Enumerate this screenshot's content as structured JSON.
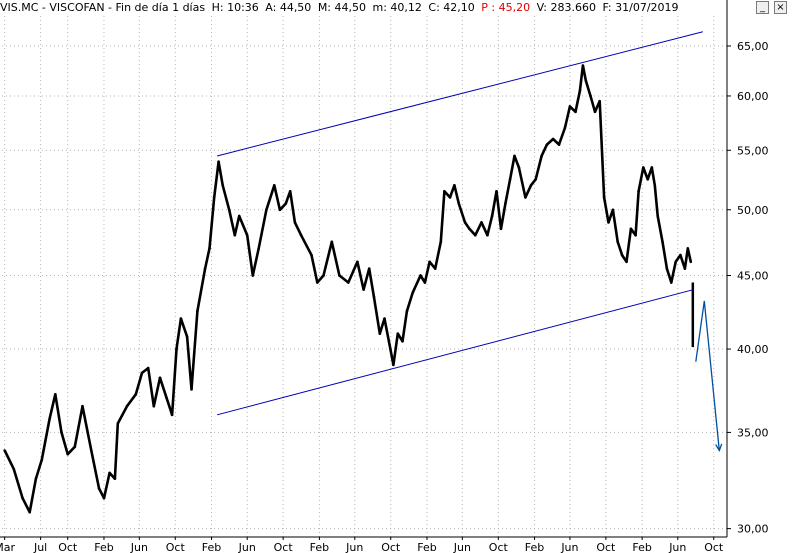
{
  "header": {
    "symbol": "VIS.MC - VISCOFAN - Fin de día 1 días",
    "h": "H: 10:36",
    "a": "A: 44,50",
    "m": "M: 44,50",
    "min": "m: 40,12",
    "c": "C: 42,10",
    "p": "P : 45,20",
    "v": "V: 283.660",
    "f": "F: 31/07/2019",
    "highlight_color": "#e00000"
  },
  "window_controls": {
    "minimize_icon": "minimize-icon",
    "minimize_glyph": "_",
    "close_icon": "close-icon",
    "close_glyph": "×"
  },
  "chart_data": {
    "type": "line",
    "title": "VIS.MC - VISCOFAN",
    "y_axis_position": "right",
    "y_scale": "log",
    "ylim": [
      29.6,
      68.2
    ],
    "y_ticks": [
      30,
      35,
      40,
      45,
      50,
      55,
      60,
      65
    ],
    "y_tick_labels": [
      "30,00",
      "35,00",
      "40,00",
      "45,00",
      "50,00",
      "55,00",
      "60,00",
      "65,00"
    ],
    "x_range": [
      "2014-02-20",
      "2020-11-15"
    ],
    "x_ticks": [
      "2014-03-01",
      "2014-07-01",
      "2014-10-01",
      "2015-02-01",
      "2015-06-01",
      "2015-10-01",
      "2016-02-01",
      "2016-06-01",
      "2016-10-01",
      "2017-02-01",
      "2017-06-01",
      "2017-10-01",
      "2018-02-01",
      "2018-06-01",
      "2018-10-01",
      "2019-02-01",
      "2019-06-01",
      "2019-10-01",
      "2020-02-01",
      "2020-06-01",
      "2020-10-01"
    ],
    "x_tick_labels": [
      "Mar",
      "Jul",
      "Oct",
      "Feb",
      "Jun",
      "Oct",
      "Feb",
      "Jun",
      "Oct",
      "Feb",
      "Jun",
      "Oct",
      "Feb",
      "Jun",
      "Oct",
      "Feb",
      "Jun",
      "Oct",
      "Feb",
      "Jun",
      "Oct"
    ],
    "series": [
      {
        "color": "#000000",
        "points": [
          [
            "2014-03-01",
            34.0
          ],
          [
            "2014-04-01",
            33.0
          ],
          [
            "2014-05-01",
            31.5
          ],
          [
            "2014-05-25",
            30.8
          ],
          [
            "2014-06-15",
            32.5
          ],
          [
            "2014-07-05",
            33.5
          ],
          [
            "2014-08-01",
            35.8
          ],
          [
            "2014-08-20",
            37.2
          ],
          [
            "2014-09-10",
            35.0
          ],
          [
            "2014-10-01",
            33.8
          ],
          [
            "2014-10-25",
            34.2
          ],
          [
            "2014-11-20",
            36.5
          ],
          [
            "2014-12-20",
            34.0
          ],
          [
            "2015-01-15",
            32.0
          ],
          [
            "2015-02-01",
            31.5
          ],
          [
            "2015-02-20",
            32.8
          ],
          [
            "2015-03-10",
            32.5
          ],
          [
            "2015-03-20",
            35.5
          ],
          [
            "2015-04-20",
            36.5
          ],
          [
            "2015-05-20",
            37.2
          ],
          [
            "2015-06-10",
            38.5
          ],
          [
            "2015-07-01",
            38.8
          ],
          [
            "2015-07-20",
            36.5
          ],
          [
            "2015-08-10",
            38.2
          ],
          [
            "2015-09-01",
            37.0
          ],
          [
            "2015-09-20",
            36.0
          ],
          [
            "2015-10-05",
            40.0
          ],
          [
            "2015-10-20",
            42.0
          ],
          [
            "2015-11-10",
            40.8
          ],
          [
            "2015-11-25",
            37.5
          ],
          [
            "2015-12-15",
            42.5
          ],
          [
            "2016-01-10",
            45.5
          ],
          [
            "2016-01-25",
            47.0
          ],
          [
            "2016-02-10",
            51.0
          ],
          [
            "2016-02-25",
            54.0
          ],
          [
            "2016-03-10",
            52.0
          ],
          [
            "2016-04-01",
            50.0
          ],
          [
            "2016-04-20",
            48.0
          ],
          [
            "2016-05-05",
            49.5
          ],
          [
            "2016-06-01",
            48.0
          ],
          [
            "2016-06-20",
            45.0
          ],
          [
            "2016-07-10",
            47.0
          ],
          [
            "2016-08-05",
            50.0
          ],
          [
            "2016-09-01",
            52.0
          ],
          [
            "2016-09-20",
            50.0
          ],
          [
            "2016-10-10",
            50.5
          ],
          [
            "2016-10-25",
            51.5
          ],
          [
            "2016-11-10",
            49.0
          ],
          [
            "2016-12-01",
            48.0
          ],
          [
            "2017-01-05",
            46.5
          ],
          [
            "2017-01-25",
            44.5
          ],
          [
            "2017-02-15",
            45.0
          ],
          [
            "2017-03-15",
            47.5
          ],
          [
            "2017-04-10",
            45.0
          ],
          [
            "2017-05-10",
            44.5
          ],
          [
            "2017-06-10",
            46.0
          ],
          [
            "2017-07-01",
            44.0
          ],
          [
            "2017-07-20",
            45.5
          ],
          [
            "2017-08-05",
            43.5
          ],
          [
            "2017-08-25",
            41.0
          ],
          [
            "2017-09-10",
            42.0
          ],
          [
            "2017-09-30",
            40.0
          ],
          [
            "2017-10-10",
            39.0
          ],
          [
            "2017-10-25",
            41.0
          ],
          [
            "2017-11-10",
            40.5
          ],
          [
            "2017-11-25",
            42.5
          ],
          [
            "2017-12-15",
            43.8
          ],
          [
            "2018-01-10",
            45.0
          ],
          [
            "2018-01-25",
            44.5
          ],
          [
            "2018-02-10",
            46.0
          ],
          [
            "2018-03-01",
            45.5
          ],
          [
            "2018-03-20",
            47.5
          ],
          [
            "2018-04-01",
            51.5
          ],
          [
            "2018-04-20",
            51.0
          ],
          [
            "2018-05-05",
            52.0
          ],
          [
            "2018-05-20",
            50.5
          ],
          [
            "2018-06-10",
            49.0
          ],
          [
            "2018-06-25",
            48.5
          ],
          [
            "2018-07-15",
            48.0
          ],
          [
            "2018-08-05",
            49.0
          ],
          [
            "2018-08-25",
            48.0
          ],
          [
            "2018-09-10",
            49.5
          ],
          [
            "2018-09-25",
            51.5
          ],
          [
            "2018-10-10",
            48.5
          ],
          [
            "2018-10-25",
            50.5
          ],
          [
            "2018-11-10",
            52.5
          ],
          [
            "2018-11-25",
            54.5
          ],
          [
            "2018-12-10",
            53.5
          ],
          [
            "2019-01-01",
            51.0
          ],
          [
            "2019-01-20",
            52.0
          ],
          [
            "2019-02-05",
            52.5
          ],
          [
            "2019-02-25",
            54.5
          ],
          [
            "2019-03-15",
            55.5
          ],
          [
            "2019-04-05",
            56.0
          ],
          [
            "2019-04-25",
            55.5
          ],
          [
            "2019-05-15",
            57.0
          ],
          [
            "2019-06-01",
            59.0
          ],
          [
            "2019-06-20",
            58.5
          ],
          [
            "2019-07-05",
            60.5
          ],
          [
            "2019-07-15",
            63.0
          ],
          [
            "2019-07-25",
            61.5
          ],
          [
            "2019-08-10",
            60.0
          ],
          [
            "2019-08-25",
            58.5
          ],
          [
            "2019-09-10",
            59.5
          ],
          [
            "2019-09-25",
            51.0
          ],
          [
            "2019-10-10",
            49.0
          ],
          [
            "2019-10-25",
            50.0
          ],
          [
            "2019-11-10",
            47.5
          ],
          [
            "2019-11-25",
            46.5
          ],
          [
            "2019-12-10",
            46.0
          ],
          [
            "2019-12-25",
            48.5
          ],
          [
            "2020-01-10",
            48.0
          ],
          [
            "2020-01-20",
            51.5
          ],
          [
            "2020-02-05",
            53.5
          ],
          [
            "2020-02-20",
            52.5
          ],
          [
            "2020-03-05",
            53.5
          ],
          [
            "2020-03-15",
            52.0
          ],
          [
            "2020-03-25",
            49.5
          ],
          [
            "2020-04-10",
            47.5
          ],
          [
            "2020-04-25",
            45.5
          ],
          [
            "2020-05-10",
            44.5
          ],
          [
            "2020-05-25",
            46.0
          ],
          [
            "2020-06-10",
            46.5
          ],
          [
            "2020-06-25",
            45.5
          ],
          [
            "2020-07-05",
            47.0
          ],
          [
            "2020-07-15",
            46.0
          ]
        ]
      }
    ],
    "last_bars": [
      {
        "date": "2020-07-22",
        "high": 44.5,
        "low": 40.12
      }
    ],
    "trendlines": [
      {
        "color": "#0000b4",
        "from": [
          "2016-02-20",
          54.5
        ],
        "to": [
          "2020-08-25",
          66.5
        ]
      },
      {
        "color": "#0000b4",
        "from": [
          "2016-02-20",
          36.0
        ],
        "to": [
          "2020-07-25",
          44.0
        ]
      }
    ],
    "forecast_arrow": {
      "color": "#0050a0",
      "points": [
        [
          "2020-08-01",
          39.2
        ],
        [
          "2020-08-30",
          43.2
        ],
        [
          "2020-10-20",
          34.0
        ]
      ]
    }
  }
}
